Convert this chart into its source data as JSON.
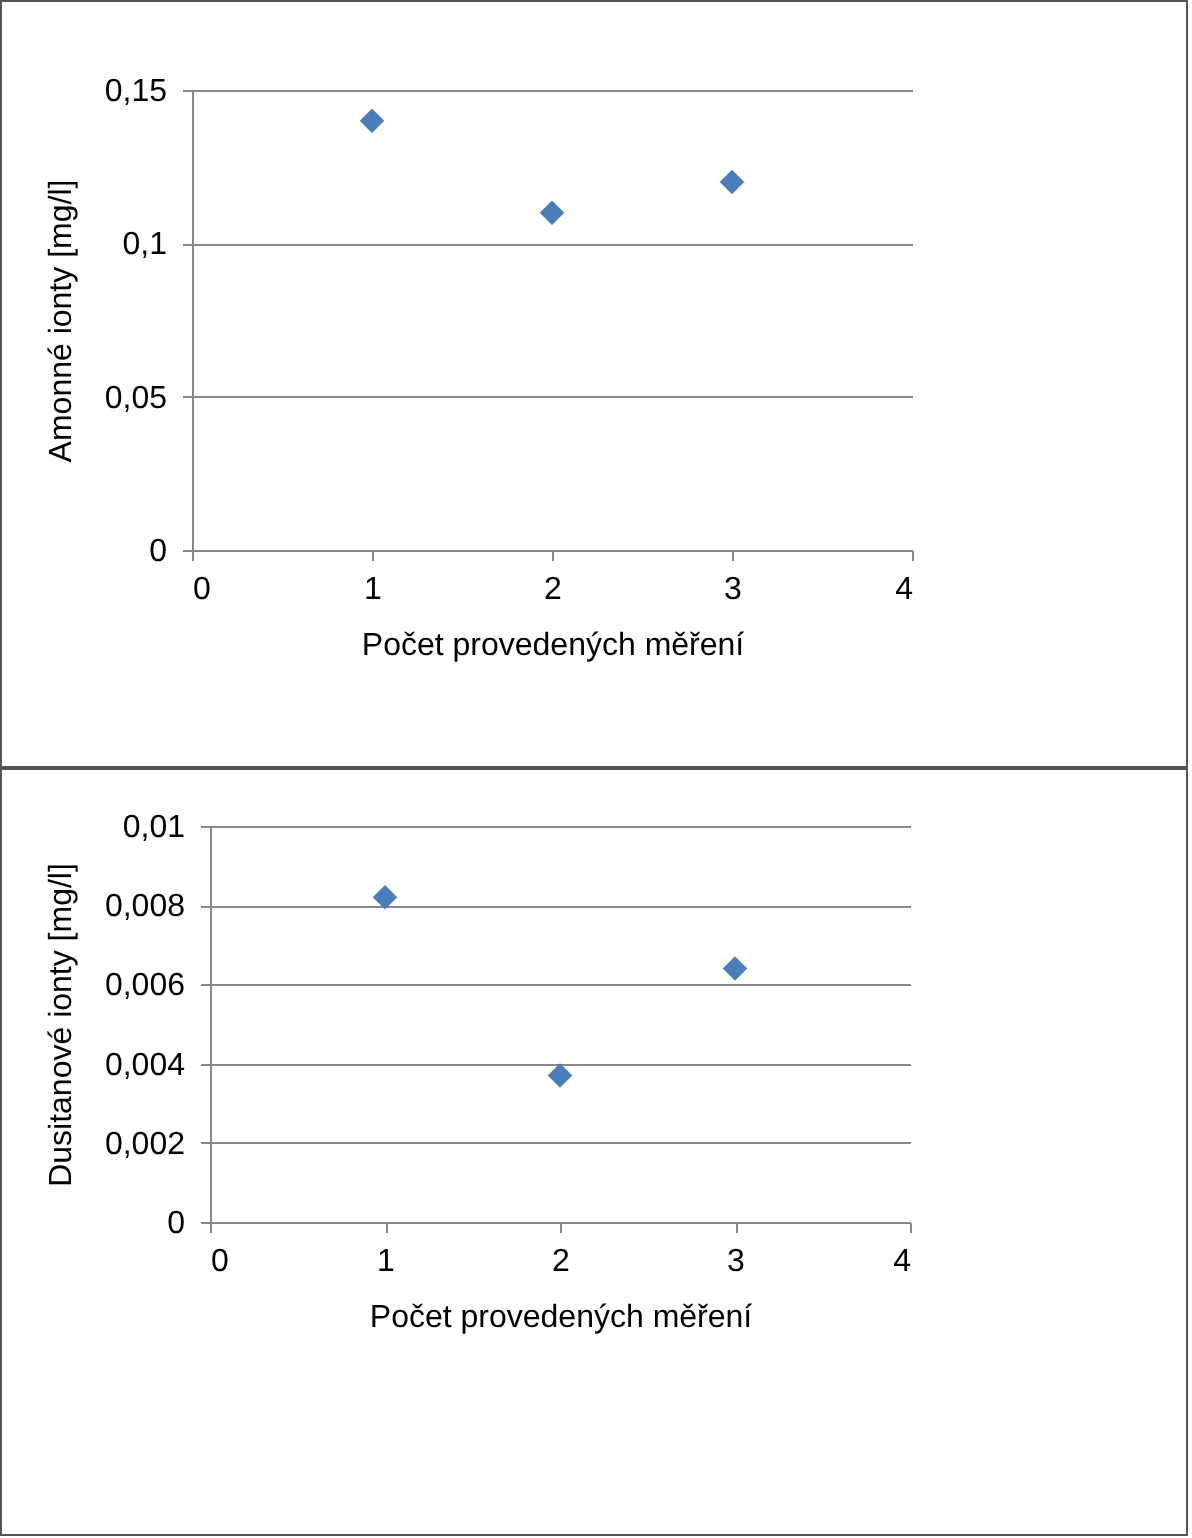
{
  "chart_data": [
    {
      "type": "scatter",
      "xlabel": "Počet provedených měření",
      "ylabel": "Amonné  ionty [mg/l]",
      "x": [
        1,
        2,
        3
      ],
      "series": [
        {
          "color": "#4a7ebb",
          "values": [
            0.14,
            0.11,
            0.12
          ]
        }
      ],
      "xlim": [
        0,
        4
      ],
      "xticks": [
        0,
        1,
        2,
        3,
        4
      ],
      "ylim": [
        0,
        0.15
      ],
      "yticks": [
        {
          "value": 0,
          "label": "0"
        },
        {
          "value": 0.05,
          "label": "0,05"
        },
        {
          "value": 0.1,
          "label": "0,1"
        },
        {
          "value": 0.15,
          "label": "0,15"
        }
      ],
      "grid": "y",
      "marker": "diamond"
    },
    {
      "type": "scatter",
      "xlabel": "Počet provedených měření",
      "ylabel": "Dusitanové ionty  [mg/l]",
      "x": [
        1,
        2,
        3
      ],
      "series": [
        {
          "color": "#4a7ebb",
          "values": [
            0.0082,
            0.0037,
            0.0064
          ]
        }
      ],
      "xlim": [
        0,
        4
      ],
      "xticks": [
        0,
        1,
        2,
        3,
        4
      ],
      "ylim": [
        0,
        0.01
      ],
      "yticks": [
        {
          "value": 0,
          "label": "0"
        },
        {
          "value": 0.002,
          "label": "0,002"
        },
        {
          "value": 0.004,
          "label": "0,004"
        },
        {
          "value": 0.006,
          "label": "0,006"
        },
        {
          "value": 0.008,
          "label": "0,008"
        },
        {
          "value": 0.01,
          "label": "0,01"
        }
      ],
      "grid": "y",
      "marker": "diamond"
    }
  ]
}
